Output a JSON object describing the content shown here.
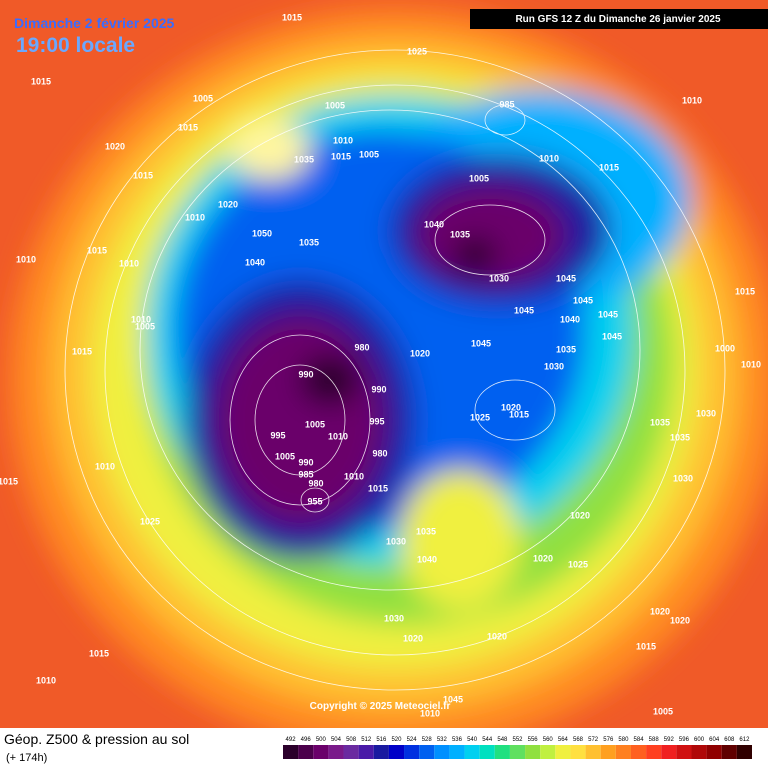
{
  "header": {
    "date": "Dimanche 2 février 2025",
    "time": "19:00 locale",
    "run": "Run GFS 12 Z du Dimanche 26 janvier 2025"
  },
  "footer": {
    "title": "Géop. Z500 & pression au sol",
    "subtitle": "(+ 174h)",
    "copyright": "Copyright © 2025 Meteociel.fr"
  },
  "colorbar": {
    "ticks": [
      492,
      496,
      500,
      504,
      508,
      512,
      516,
      520,
      524,
      528,
      532,
      536,
      540,
      544,
      548,
      552,
      556,
      560,
      564,
      568,
      572,
      576,
      580,
      584,
      588,
      592,
      596,
      600,
      604,
      608,
      612
    ],
    "colors": [
      "#2b002b",
      "#4b004b",
      "#6a006a",
      "#7a1a8a",
      "#6a2aa0",
      "#4a1aa8",
      "#1a1aa0",
      "#0000c8",
      "#0030e0",
      "#0060f0",
      "#0090ff",
      "#00b0ff",
      "#00d0f0",
      "#00e0c0",
      "#20e080",
      "#60e060",
      "#90e040",
      "#c0f040",
      "#f0f040",
      "#ffe040",
      "#ffc030",
      "#ffa020",
      "#ff8020",
      "#ff6020",
      "#ff4020",
      "#f02020",
      "#d01010",
      "#b00808",
      "#900000",
      "#600000",
      "#300000"
    ]
  },
  "isobar_labels": [
    "1015",
    "1025",
    "1010",
    "1015",
    "1005",
    "1015",
    "1020",
    "1015",
    "1005",
    "1010",
    "1005",
    "1035",
    "1015",
    "1005",
    "1010",
    "1015",
    "1020",
    "1010",
    "1050",
    "1035",
    "1040",
    "1010",
    "1015",
    "1010",
    "1040",
    "1035",
    "1030",
    "1045",
    "1045",
    "1045",
    "1040",
    "1045",
    "1045",
    "1035",
    "1030",
    "1020",
    "1045",
    "990",
    "980",
    "990",
    "995",
    "1025",
    "1020",
    "1015",
    "995",
    "1005",
    "1010",
    "1005",
    "990",
    "985",
    "980",
    "980",
    "1010",
    "1015",
    "1030",
    "1035",
    "1040",
    "1020",
    "1025",
    "1020",
    "1035",
    "1035",
    "1030",
    "1030",
    "1000",
    "1010",
    "1015",
    "1015",
    "1010",
    "1025",
    "1015",
    "1010",
    "1005",
    "1030",
    "1020",
    "1020",
    "1020",
    "1020",
    "1015",
    "1015",
    "1010",
    "1005",
    "1010",
    "1045",
    "985",
    "955"
  ]
}
